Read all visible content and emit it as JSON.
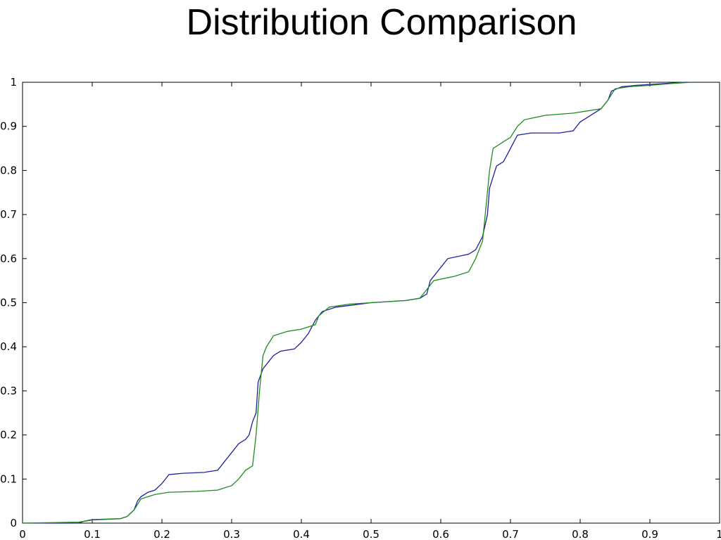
{
  "chart_data": {
    "type": "line",
    "title": "Distribution Comparison",
    "xlabel": "",
    "ylabel": "",
    "xlim": [
      0,
      1
    ],
    "ylim": [
      0,
      1
    ],
    "grid": false,
    "legend": "none",
    "x_ticks": [
      "0",
      "0.1",
      "0.2",
      "0.3",
      "0.4",
      "0.5",
      "0.6",
      "0.7",
      "0.8",
      "0.9",
      "1"
    ],
    "y_ticks": [
      "0",
      "0.1",
      "0.2",
      "0.3",
      "0.4",
      "0.5",
      "0.6",
      "0.7",
      "0.8",
      "0.9",
      "1"
    ],
    "series": [
      {
        "color": "#1f1f9c",
        "points": [
          [
            0.0,
            0.0
          ],
          [
            0.08,
            0.0
          ],
          [
            0.09,
            0.005
          ],
          [
            0.1,
            0.008
          ],
          [
            0.14,
            0.01
          ],
          [
            0.15,
            0.015
          ],
          [
            0.16,
            0.03
          ],
          [
            0.165,
            0.05
          ],
          [
            0.17,
            0.06
          ],
          [
            0.18,
            0.07
          ],
          [
            0.19,
            0.075
          ],
          [
            0.2,
            0.09
          ],
          [
            0.21,
            0.11
          ],
          [
            0.23,
            0.113
          ],
          [
            0.26,
            0.115
          ],
          [
            0.28,
            0.12
          ],
          [
            0.29,
            0.14
          ],
          [
            0.3,
            0.16
          ],
          [
            0.31,
            0.18
          ],
          [
            0.32,
            0.19
          ],
          [
            0.325,
            0.2
          ],
          [
            0.33,
            0.23
          ],
          [
            0.335,
            0.25
          ],
          [
            0.338,
            0.32
          ],
          [
            0.345,
            0.35
          ],
          [
            0.36,
            0.38
          ],
          [
            0.37,
            0.39
          ],
          [
            0.39,
            0.395
          ],
          [
            0.4,
            0.41
          ],
          [
            0.41,
            0.43
          ],
          [
            0.42,
            0.46
          ],
          [
            0.43,
            0.48
          ],
          [
            0.45,
            0.49
          ],
          [
            0.5,
            0.5
          ],
          [
            0.55,
            0.505
          ],
          [
            0.57,
            0.51
          ],
          [
            0.58,
            0.52
          ],
          [
            0.585,
            0.55
          ],
          [
            0.6,
            0.58
          ],
          [
            0.61,
            0.6
          ],
          [
            0.64,
            0.61
          ],
          [
            0.65,
            0.62
          ],
          [
            0.66,
            0.65
          ],
          [
            0.667,
            0.7
          ],
          [
            0.67,
            0.76
          ],
          [
            0.68,
            0.81
          ],
          [
            0.69,
            0.82
          ],
          [
            0.7,
            0.85
          ],
          [
            0.71,
            0.88
          ],
          [
            0.73,
            0.885
          ],
          [
            0.77,
            0.885
          ],
          [
            0.79,
            0.89
          ],
          [
            0.8,
            0.91
          ],
          [
            0.81,
            0.92
          ],
          [
            0.82,
            0.93
          ],
          [
            0.83,
            0.94
          ],
          [
            0.84,
            0.96
          ],
          [
            0.845,
            0.98
          ],
          [
            0.86,
            0.99
          ],
          [
            0.88,
            0.993
          ],
          [
            0.9,
            0.995
          ],
          [
            0.92,
            0.997
          ],
          [
            0.95,
            1.0
          ],
          [
            0.96,
            1.0
          ]
        ]
      },
      {
        "color": "#1f8c1f",
        "points": [
          [
            0.0,
            0.0
          ],
          [
            0.08,
            0.002
          ],
          [
            0.1,
            0.007
          ],
          [
            0.14,
            0.01
          ],
          [
            0.15,
            0.015
          ],
          [
            0.16,
            0.03
          ],
          [
            0.17,
            0.055
          ],
          [
            0.19,
            0.065
          ],
          [
            0.21,
            0.07
          ],
          [
            0.25,
            0.072
          ],
          [
            0.28,
            0.075
          ],
          [
            0.29,
            0.08
          ],
          [
            0.3,
            0.085
          ],
          [
            0.31,
            0.1
          ],
          [
            0.32,
            0.12
          ],
          [
            0.33,
            0.13
          ],
          [
            0.335,
            0.2
          ],
          [
            0.34,
            0.3
          ],
          [
            0.345,
            0.38
          ],
          [
            0.35,
            0.4
          ],
          [
            0.36,
            0.425
          ],
          [
            0.38,
            0.435
          ],
          [
            0.4,
            0.44
          ],
          [
            0.42,
            0.45
          ],
          [
            0.425,
            0.47
          ],
          [
            0.44,
            0.49
          ],
          [
            0.47,
            0.497
          ],
          [
            0.5,
            0.5
          ],
          [
            0.55,
            0.505
          ],
          [
            0.57,
            0.51
          ],
          [
            0.58,
            0.53
          ],
          [
            0.59,
            0.55
          ],
          [
            0.62,
            0.56
          ],
          [
            0.64,
            0.57
          ],
          [
            0.65,
            0.6
          ],
          [
            0.66,
            0.64
          ],
          [
            0.665,
            0.72
          ],
          [
            0.67,
            0.8
          ],
          [
            0.675,
            0.85
          ],
          [
            0.69,
            0.865
          ],
          [
            0.7,
            0.875
          ],
          [
            0.71,
            0.9
          ],
          [
            0.72,
            0.915
          ],
          [
            0.75,
            0.925
          ],
          [
            0.79,
            0.93
          ],
          [
            0.81,
            0.935
          ],
          [
            0.83,
            0.94
          ],
          [
            0.84,
            0.96
          ],
          [
            0.85,
            0.985
          ],
          [
            0.87,
            0.99
          ],
          [
            0.9,
            0.993
          ],
          [
            0.93,
            0.997
          ],
          [
            0.96,
            1.0
          ]
        ]
      }
    ]
  }
}
